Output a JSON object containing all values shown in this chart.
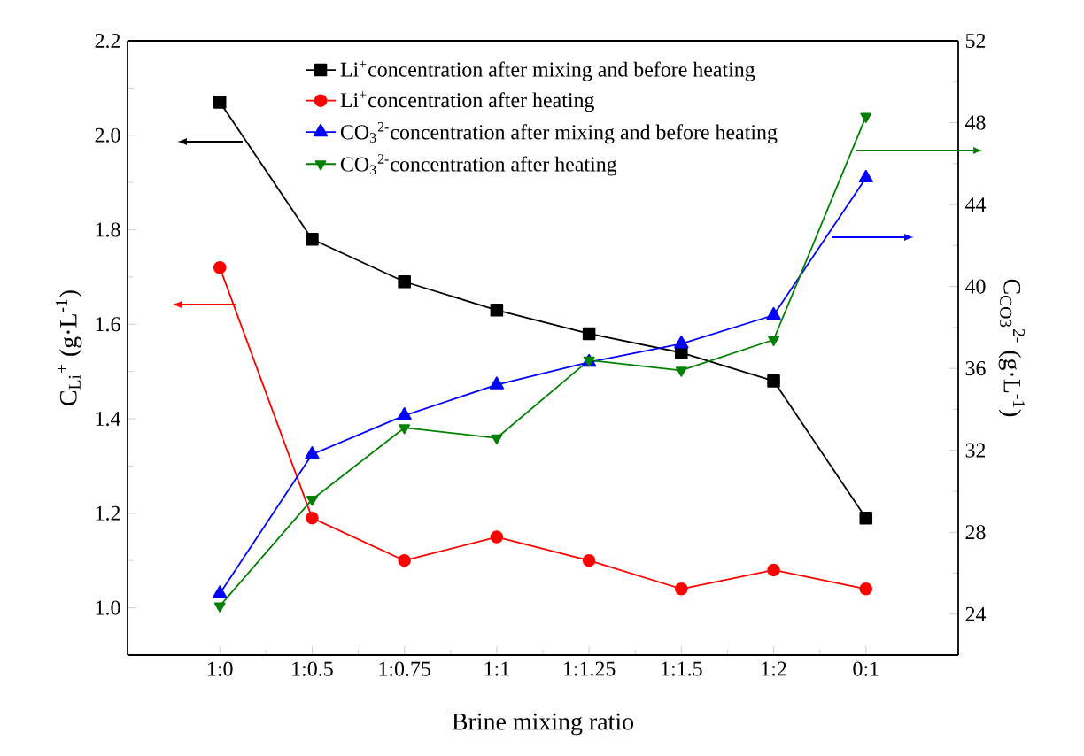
{
  "chart_data": {
    "type": "line",
    "categories": [
      "1:0",
      "1:0.5",
      "1:0.75",
      "1:1",
      "1:1.25",
      "1:1.5",
      "1:2",
      "0:1"
    ],
    "xlabel": "Brine mixing ratio",
    "ylabel": "C$_{Li}$$^{+}$ (g·L$^{-1}$)",
    "y2label": "C$_{CO3}$$^{2-}$ (g·L$^{-1}$)",
    "ylim": [
      0.9,
      2.2
    ],
    "yticks": [
      {
        "value": 1.0,
        "label": "1.0"
      },
      1.2,
      1.4,
      1.6,
      1.8,
      {
        "value": 2.0,
        "label": "2.0"
      },
      2.2
    ],
    "y2lim": [
      22,
      52
    ],
    "y2ticks": [
      24,
      28,
      32,
      36,
      40,
      44,
      48,
      52
    ],
    "legend": "top",
    "line_style": "solid",
    "series": [
      {
        "name": "Li$^{+}$concentration after mixing and before heating",
        "color": "#000000",
        "marker": "square",
        "values": [
          2.07,
          1.78,
          1.69,
          1.63,
          1.58,
          1.54,
          1.48,
          1.19
        ]
      },
      {
        "name": "Li$^{+}$concentration after heating",
        "color": "#ff0000",
        "marker": "circle",
        "values": [
          1.72,
          1.19,
          1.1,
          1.15,
          1.1,
          1.04,
          1.08,
          1.04
        ]
      },
      {
        "name": "CO$_{3}$$^{2-}$concentration after mixing and before heating",
        "color": "#0000ff",
        "marker": "triangle",
        "axis": "y2",
        "values": [
          25.0,
          31.8,
          33.7,
          35.2,
          36.3,
          37.2,
          38.6,
          45.3
        ]
      },
      {
        "name": "CO$_{3}$$^{2-}$concentration after heating",
        "color": "#008000",
        "marker": "triangle-down",
        "axis": "y2",
        "values": [
          24.4,
          29.6,
          33.1,
          32.6,
          36.4,
          35.9,
          37.4,
          48.3
        ]
      }
    ]
  }
}
